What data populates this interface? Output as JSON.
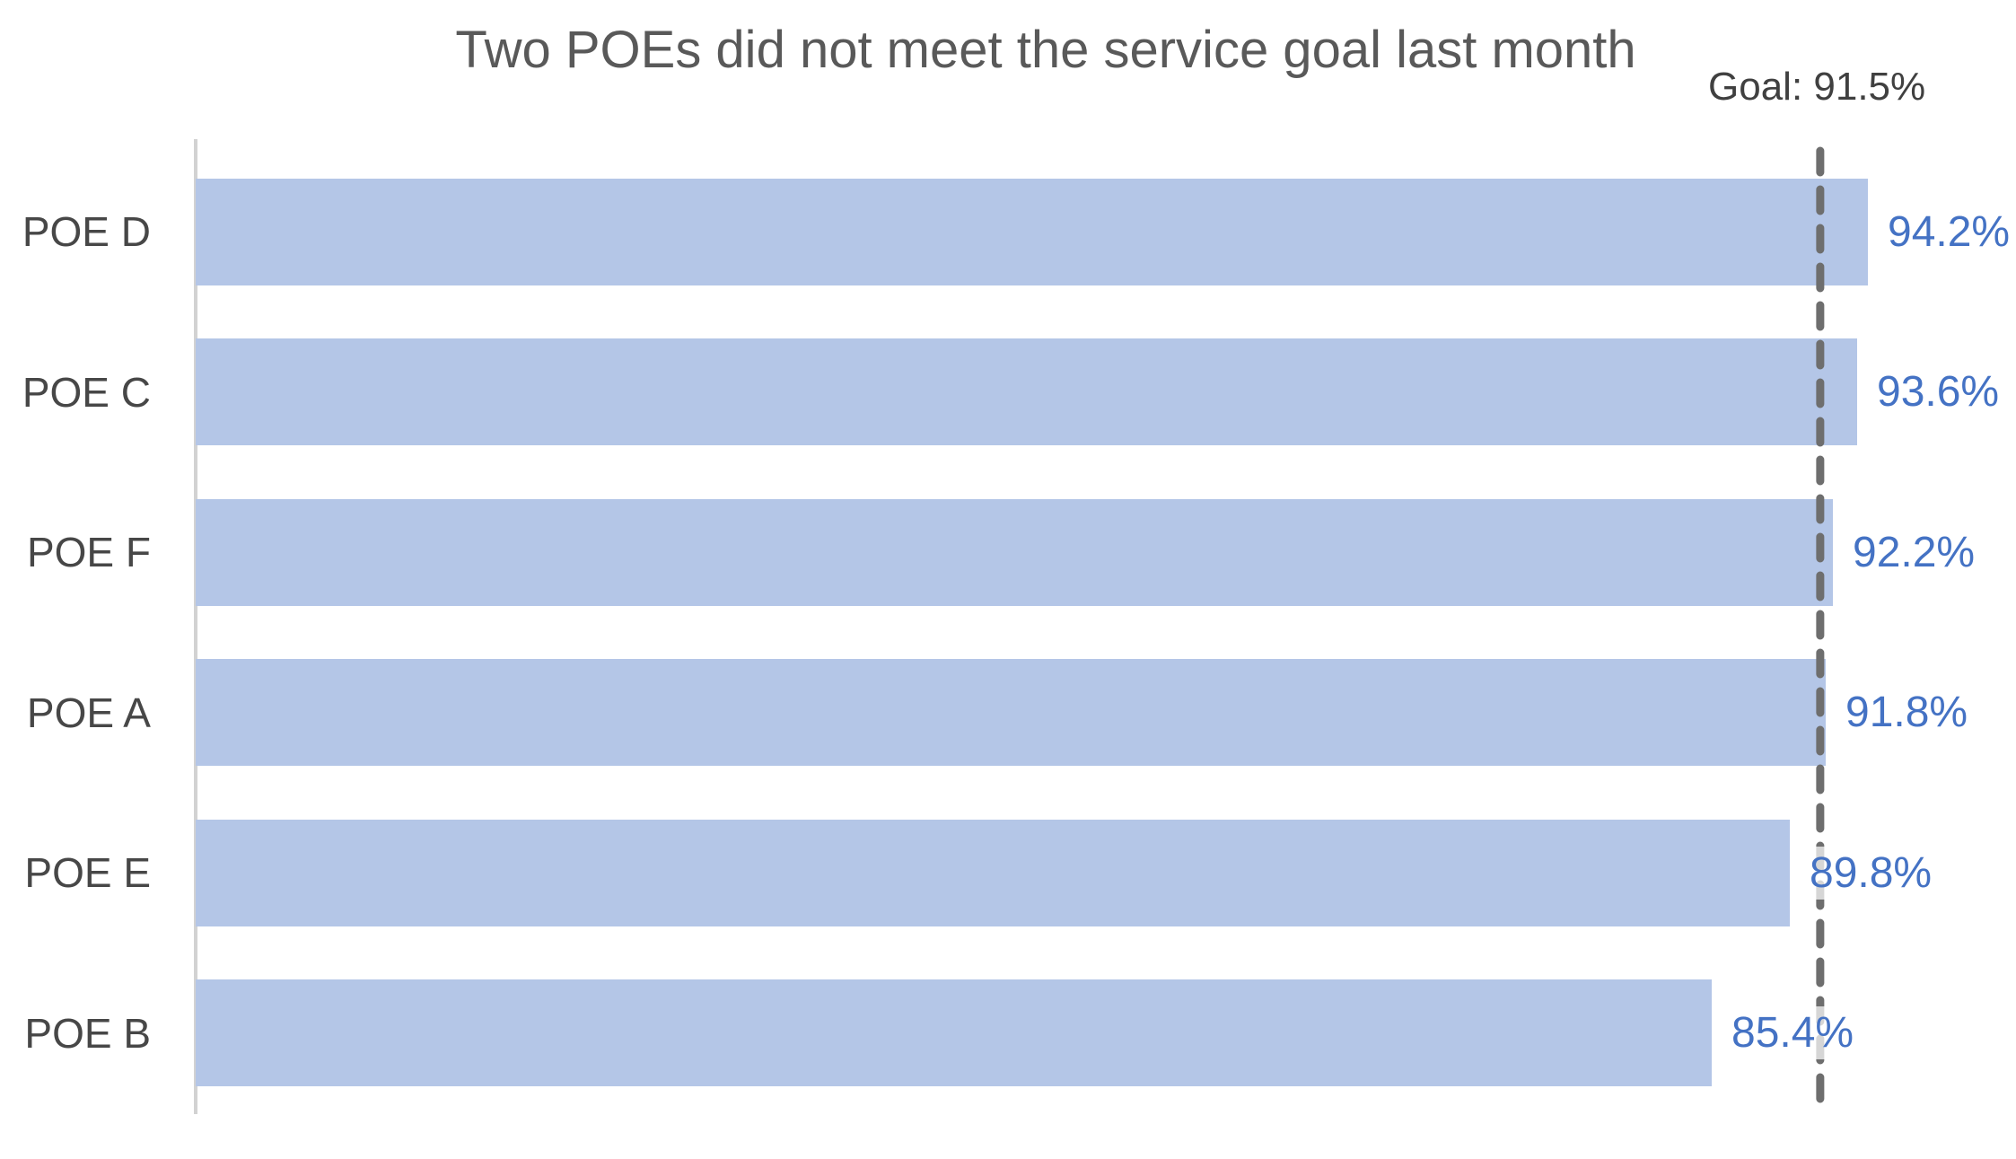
{
  "page": {
    "background_color": "#ffffff"
  },
  "chart_data": {
    "type": "bar",
    "orientation": "horizontal",
    "title": "Two POEs did not meet the service goal last month",
    "categories": [
      "POE D",
      "POE C",
      "POE F",
      "POE A",
      "POE E",
      "POE B"
    ],
    "values": [
      94.2,
      93.6,
      92.2,
      91.8,
      89.8,
      85.4
    ],
    "value_labels": [
      "94.2%",
      "93.6%",
      "92.2%",
      "91.8%",
      "89.8%",
      "85.4%"
    ],
    "goal_line": {
      "label": "Goal: 91.5%",
      "value": 91.5,
      "style": "dashed"
    },
    "xlim": [
      0,
      100
    ],
    "xlabel": "",
    "ylabel": "",
    "grid": false,
    "legend": false,
    "colors": {
      "bar_fill": "#b4c6e7",
      "value_label": "#4472c4",
      "goal_line": "#6e6e6e",
      "axis_line": "#d2d2d2",
      "title_text": "#595959",
      "category_text": "#474747",
      "goal_label_text": "#404040"
    }
  }
}
